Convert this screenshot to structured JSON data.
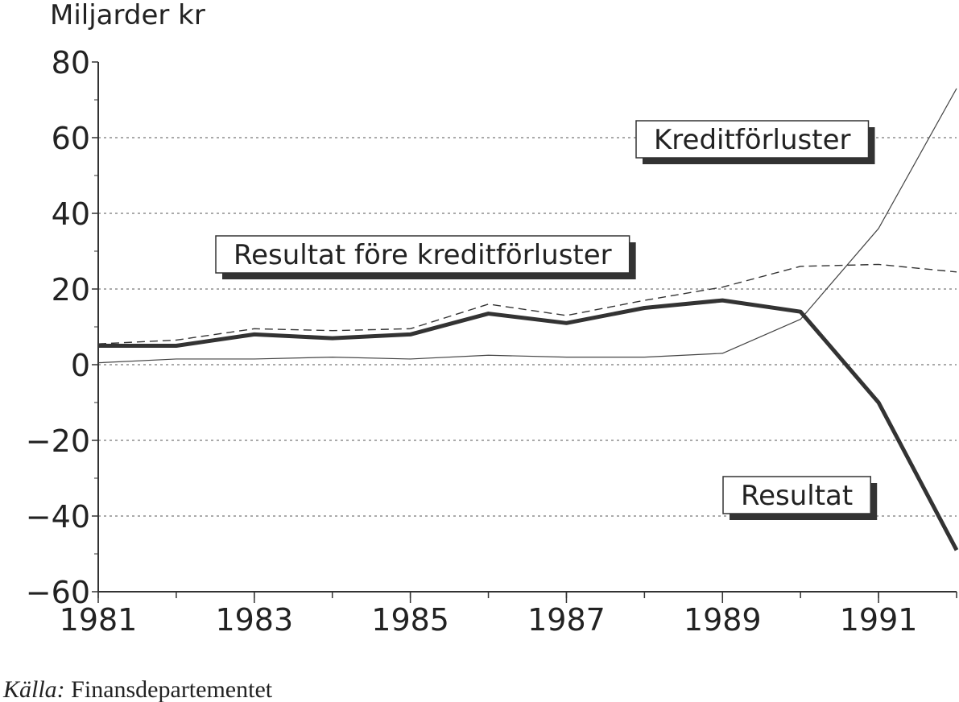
{
  "chart_data": {
    "type": "line",
    "ylabel": "Miljarder kr",
    "x": [
      1981,
      1982,
      1983,
      1984,
      1985,
      1986,
      1987,
      1988,
      1989,
      1990,
      1991,
      1992
    ],
    "series": [
      {
        "name": "Kreditförluster",
        "color": "#444",
        "style": "thin",
        "values": [
          0.5,
          1.5,
          1.5,
          2,
          1.5,
          2.5,
          2,
          2,
          3,
          12,
          36,
          73
        ]
      },
      {
        "name": "Resultat före kreditförluster",
        "color": "#333",
        "style": "dashed",
        "values": [
          5.5,
          6.5,
          9.5,
          9,
          9.5,
          16,
          13,
          17,
          20.5,
          26,
          26.5,
          24.5
        ]
      },
      {
        "name": "Resultat",
        "color": "#333",
        "style": "thick",
        "values": [
          5,
          5,
          8,
          7,
          8,
          13.5,
          11,
          15,
          17,
          14,
          -10,
          -49
        ]
      }
    ],
    "xlim": [
      1981,
      1992
    ],
    "xticks": [
      1981,
      1983,
      1985,
      1987,
      1989,
      1991
    ],
    "ylim": [
      -60,
      80
    ],
    "yticks": [
      {
        "value": -60,
        "label": "−60"
      },
      {
        "value": -40,
        "label": "−40"
      },
      {
        "value": -20,
        "label": "−20"
      },
      0,
      20,
      40,
      60,
      80
    ],
    "grid": true,
    "source": {
      "label": "Källa:",
      "text": "Finansdepartementet"
    }
  }
}
